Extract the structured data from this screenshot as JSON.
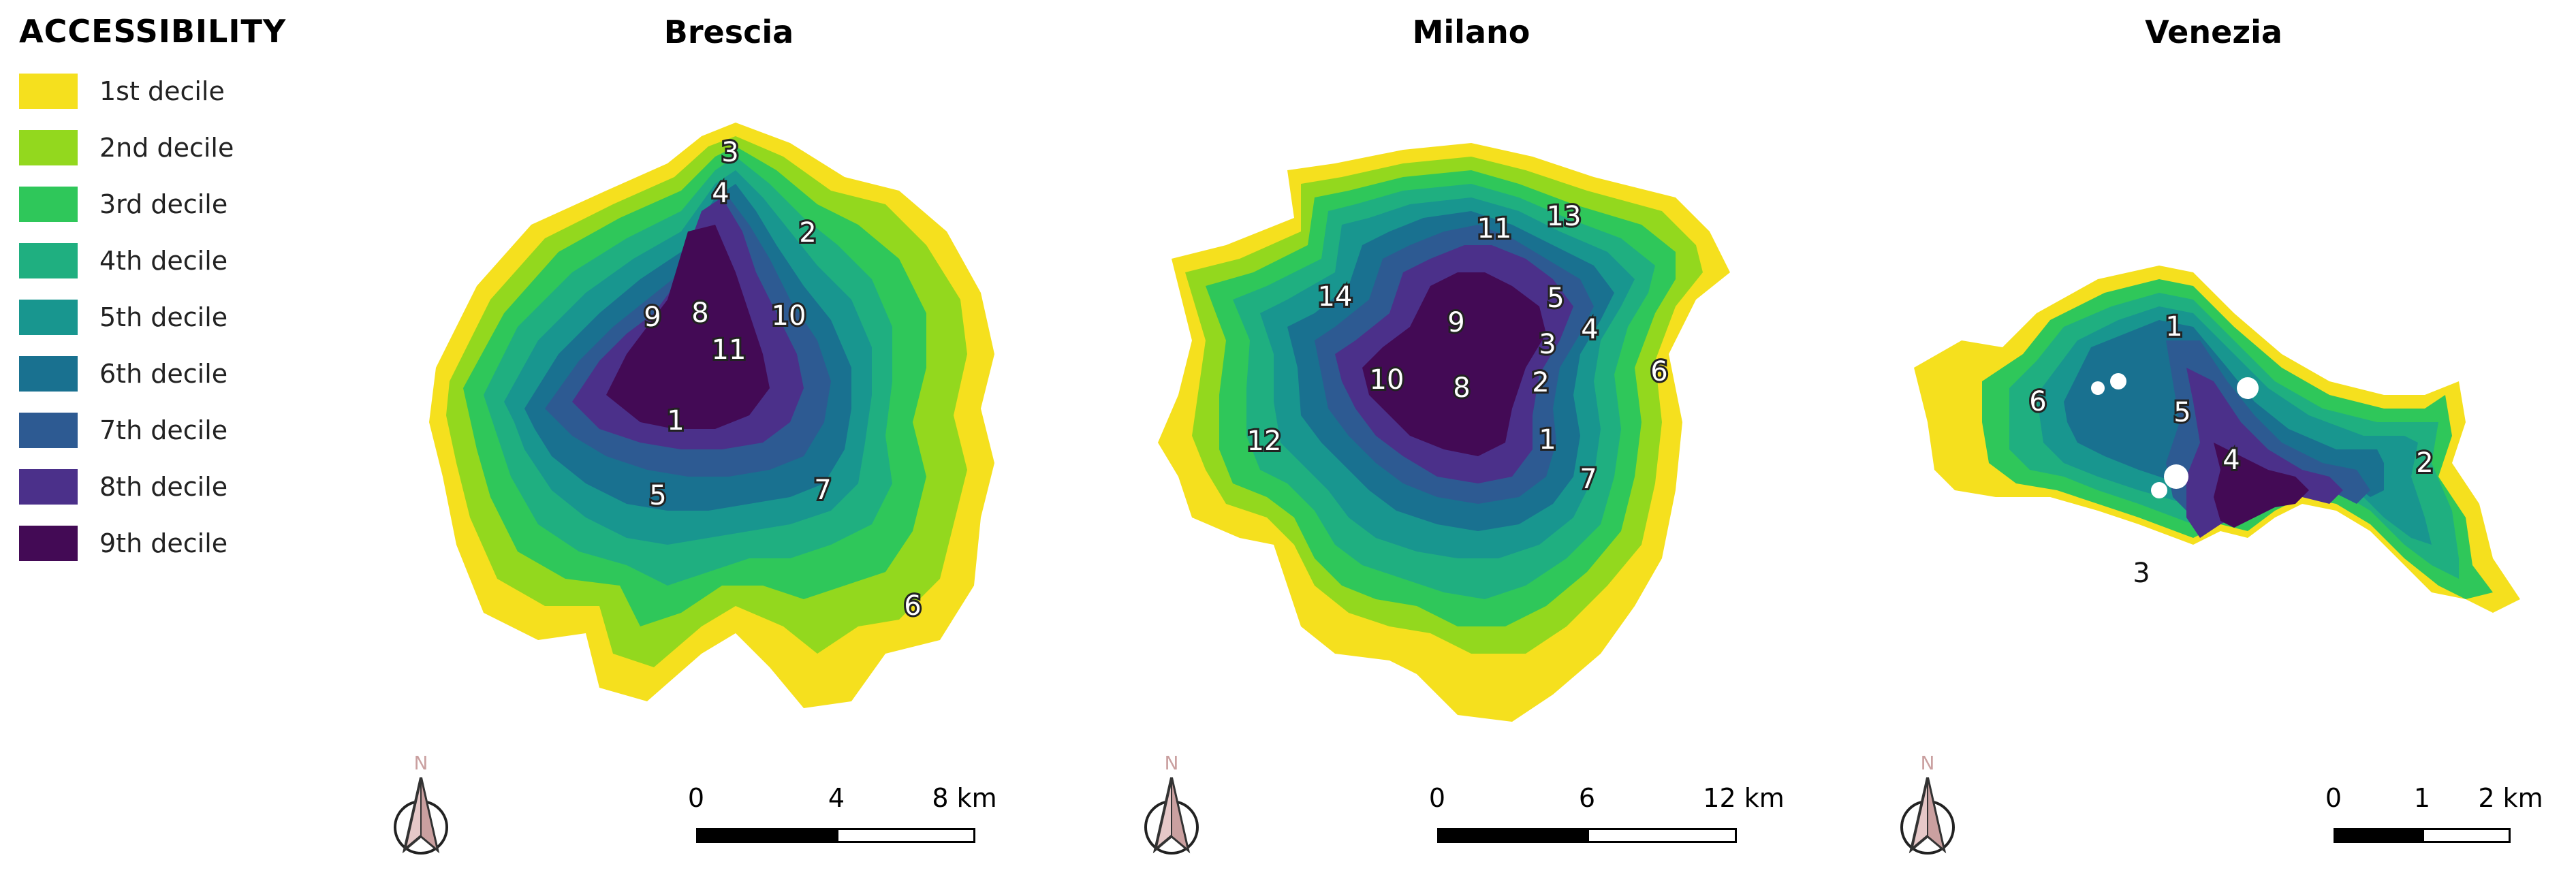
{
  "legend": {
    "title": "ACCESSIBILITY",
    "items": [
      {
        "label": "1st decile",
        "color": "#f5e01e"
      },
      {
        "label": "2nd decile",
        "color": "#93d81e"
      },
      {
        "label": "3rd decile",
        "color": "#2fc75a"
      },
      {
        "label": "4th decile",
        "color": "#1faf80"
      },
      {
        "label": "5th decile",
        "color": "#18968f"
      },
      {
        "label": "6th decile",
        "color": "#197190"
      },
      {
        "label": "7th decile",
        "color": "#2d5a92"
      },
      {
        "label": "8th decile",
        "color": "#4b308a"
      },
      {
        "label": "9th decile",
        "color": "#430a55"
      }
    ]
  },
  "maps": [
    {
      "title": "Brescia",
      "districts": [
        "1",
        "2",
        "3",
        "4",
        "5",
        "6",
        "7",
        "8",
        "9",
        "10",
        "11"
      ],
      "north_label": "N",
      "scale": {
        "ticks": [
          "0",
          "4",
          "8 km"
        ]
      }
    },
    {
      "title": "Milano",
      "districts": [
        "1",
        "2",
        "3",
        "4",
        "5",
        "6",
        "7",
        "8",
        "9",
        "10",
        "11",
        "12",
        "13",
        "14"
      ],
      "north_label": "N",
      "scale": {
        "ticks": [
          "0",
          "6",
          "12 km"
        ]
      }
    },
    {
      "title": "Venezia",
      "districts": [
        "1",
        "2",
        "3",
        "4",
        "5",
        "6"
      ],
      "north_label": "N",
      "scale": {
        "ticks": [
          "0",
          "1",
          "2 km"
        ]
      }
    }
  ]
}
